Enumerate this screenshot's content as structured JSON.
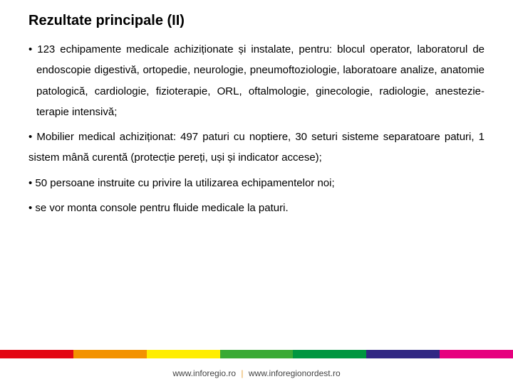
{
  "title": "Rezultate principale (II)",
  "bullets": {
    "b1": "123 echipamente medicale achiziționate și instalate, pentru: blocul operator, laboratorul de endoscopie digestivă, ortopedie, neurologie, pneumoftoziologie, laboratoare analize, anatomie patologică, cardiologie, fizioterapie, ORL, oftalmologie, ginecologie, radiologie, anestezie- terapie intensivă;",
    "b2": "Mobilier medical achiziționat: 497 paturi cu noptiere, 30 seturi sisteme separatoare paturi, 1 sistem mână curentă (protecție pereți, uși și indicator accese);",
    "b3": "50 persoane instruite cu privire la utilizarea echipamentelor noi;",
    "b4": "se vor monta console pentru fluide medicale la paturi."
  },
  "color_bar": {
    "colors": [
      "#e30613",
      "#f39200",
      "#ffed00",
      "#3aaa35",
      "#009640",
      "#312783",
      "#e6007e"
    ]
  },
  "footer": {
    "left": "www.inforegio.ro",
    "right": "www.inforegionordest.ro"
  }
}
